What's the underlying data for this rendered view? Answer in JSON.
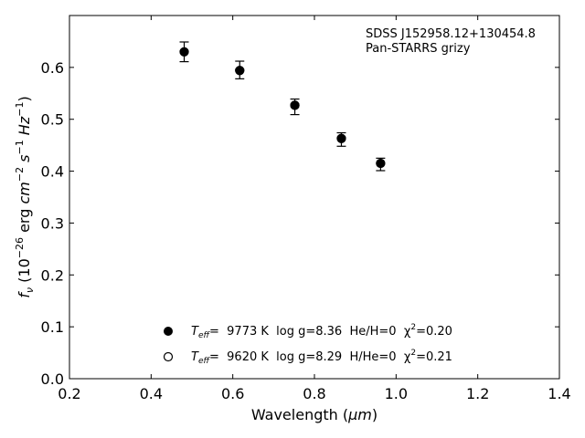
{
  "chart_data": {
    "type": "scatter",
    "xlim": [
      0.2,
      1.4
    ],
    "ylim": [
      0.0,
      0.7
    ],
    "xticks": [
      "0.2",
      "0.4",
      "0.6",
      "0.8",
      "1.0",
      "1.2",
      "1.4"
    ],
    "yticks": [
      "0.0",
      "0.1",
      "0.2",
      "0.3",
      "0.4",
      "0.5",
      "0.6"
    ],
    "xlabel": "Wavelength (μm)",
    "ylabel": "fν (10⁻²⁶ erg cm⁻² s⁻¹ Hz⁻¹)",
    "grid": false,
    "annotation": {
      "line1": "SDSS J152958.12+130454.8",
      "line2": "Pan-STARRS grizy"
    },
    "observed": {
      "x": [
        0.481,
        0.617,
        0.752,
        0.866,
        0.962
      ],
      "y": [
        0.63,
        0.595,
        0.524,
        0.461,
        0.413
      ],
      "yerr": [
        0.019,
        0.017,
        0.015,
        0.013,
        0.012
      ]
    },
    "series": [
      {
        "name": "Teff= 9773 K  log g=8.36  He/H=0  χ²=0.20",
        "marker": "filled-circle",
        "x": [
          0.481,
          0.617,
          0.752,
          0.866,
          0.962
        ],
        "y": [
          0.63,
          0.594,
          0.527,
          0.463,
          0.415
        ]
      },
      {
        "name": "Teff= 9620 K  log g=8.29  H/He=0  χ²=0.21",
        "marker": "open-circle",
        "x": [
          0.481,
          0.617,
          0.752,
          0.866,
          0.962
        ],
        "y": [
          0.63,
          0.594,
          0.527,
          0.463,
          0.415
        ]
      }
    ],
    "legend": {
      "placement": "lower-center",
      "entries": [
        {
          "teff_label": "T",
          "teff_sub": "eff",
          "text": "=  9773 K  log g=8.36  He/H=0  χ",
          "sup": "2",
          "tail": "=0.20"
        },
        {
          "teff_label": "T",
          "teff_sub": "eff",
          "text": "=  9620 K  log g=8.29  H/He=0  χ",
          "sup": "2",
          "tail": "=0.21"
        }
      ]
    },
    "axis_label_parts": {
      "x": {
        "text": "Wavelength (",
        "unit": "μm",
        "close": ")"
      },
      "y": {
        "f": "f",
        "fsub": "ν",
        "open": " (10",
        "exp26": "−26",
        "erg": " erg ",
        "cm": "cm",
        "exp2": "−2",
        "s": " s",
        "exp1a": "−1",
        "hz": " Hz",
        "exp1b": "−1",
        "close": ")"
      }
    }
  }
}
